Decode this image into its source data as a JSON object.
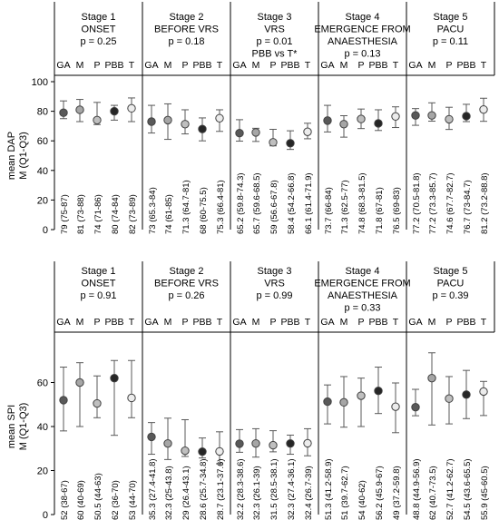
{
  "chart_data": [
    {
      "type": "scatter",
      "ylabel": "mean DAP\nM (Q1-Q3)",
      "ylim": [
        0,
        100
      ],
      "yticks": [
        0,
        20,
        40,
        60,
        80,
        100
      ],
      "grid": false,
      "stages": [
        {
          "title": [
            "Stage 1",
            "ONSET"
          ],
          "pvalue": [
            "p = 0.25"
          ]
        },
        {
          "title": [
            "Stage 2",
            "BEFORE VRS"
          ],
          "pvalue": [
            "p = 0.18"
          ]
        },
        {
          "title": [
            "Stage 3",
            "VRS"
          ],
          "pvalue": [
            "p = 0.01",
            "PBB vs T*"
          ]
        },
        {
          "title": [
            "Stage 4",
            "EMERGENCE FROM",
            "ANAESTHESIA"
          ],
          "pvalue": [
            "p = 0.13"
          ]
        },
        {
          "title": [
            "Stage 5",
            "PACU"
          ],
          "pvalue": [
            "p = 0.11"
          ]
        }
      ],
      "groups": [
        "GA",
        "M",
        "P",
        "PBB",
        "T"
      ],
      "group_colors": {
        "GA": "#595959",
        "M": "#a6a6a6",
        "P": "#bfbfbf",
        "PBB": "#262626",
        "T": "#ececec"
      },
      "points": [
        [
          {
            "median": 79,
            "q1": 75,
            "q3": 87,
            "label": "79 (75-87)"
          },
          {
            "median": 81,
            "q1": 73,
            "q3": 88,
            "label": "81 (73-88)"
          },
          {
            "median": 74,
            "q1": 71,
            "q3": 86,
            "label": "74 (71-86)"
          },
          {
            "median": 80,
            "q1": 74,
            "q3": 84,
            "label": "80 (74-84)"
          },
          {
            "median": 82,
            "q1": 73,
            "q3": 89,
            "label": "82 (73-89)"
          }
        ],
        [
          {
            "median": 73,
            "q1": 65.3,
            "q3": 84,
            "label": "73 (65.3-84)"
          },
          {
            "median": 74,
            "q1": 61,
            "q3": 85,
            "label": "74 (61-85)"
          },
          {
            "median": 71.3,
            "q1": 64.7,
            "q3": 81,
            "label": "71.3 (64.7-81)"
          },
          {
            "median": 68,
            "q1": 60,
            "q3": 75.5,
            "label": "68 (60-75.5)"
          },
          {
            "median": 75.3,
            "q1": 66.4,
            "q3": 81,
            "label": "75.3 (66.4-81)"
          }
        ],
        [
          {
            "median": 65.2,
            "q1": 59.8,
            "q3": 74.3,
            "label": "65.2 (59.8-74.3)"
          },
          {
            "median": 65.7,
            "q1": 59.6,
            "q3": 68.5,
            "label": "65.7 (59.6-68.5)"
          },
          {
            "median": 59,
            "q1": 56.6,
            "q3": 67.8,
            "label": "59 (56.6-67.8)"
          },
          {
            "median": 58.4,
            "q1": 54.2,
            "q3": 66.8,
            "label": "58.4 (54.2-66.8)"
          },
          {
            "median": 66.1,
            "q1": 61.4,
            "q3": 71.9,
            "label": "66.1 (61.4-71.9)"
          }
        ],
        [
          {
            "median": 73.7,
            "q1": 66,
            "q3": 84,
            "label": "73.7 (66-84)"
          },
          {
            "median": 71.3,
            "q1": 62.5,
            "q3": 77,
            "label": "71.3 (62.5-77)"
          },
          {
            "median": 74.8,
            "q1": 68.3,
            "q3": 81.5,
            "label": "74.8 (68.3-81.5)"
          },
          {
            "median": 71.8,
            "q1": 67,
            "q3": 81,
            "label": "71.8 (67-81)"
          },
          {
            "median": 76.5,
            "q1": 69,
            "q3": 83,
            "label": "76.5 (69-83)"
          }
        ],
        [
          {
            "median": 77.2,
            "q1": 70.5,
            "q3": 81.8,
            "label": "77.2 (70.5-81.8)"
          },
          {
            "median": 77.2,
            "q1": 73.3,
            "q3": 85.7,
            "label": "77.2 (73.3-85.7)"
          },
          {
            "median": 74.6,
            "q1": 67.7,
            "q3": 82.7,
            "label": "74.6 (67.7-82.7)"
          },
          {
            "median": 76.7,
            "q1": 73,
            "q3": 84.7,
            "label": "76.7 (73-84.7)"
          },
          {
            "median": 81.2,
            "q1": 73.2,
            "q3": 88.8,
            "label": "81.2 (73.2-88.8)"
          }
        ]
      ]
    },
    {
      "type": "scatter",
      "ylabel": "mean SPI\nM (Q1-Q3)",
      "ylim": [
        0,
        80
      ],
      "yticks": [
        0,
        20,
        40,
        60
      ],
      "grid": false,
      "stages": [
        {
          "title": [
            "Stage 1",
            "ONSET"
          ],
          "pvalue": [
            "p = 0.91"
          ]
        },
        {
          "title": [
            "Stage 2",
            "BEFORE VRS"
          ],
          "pvalue": [
            "p = 0.26"
          ]
        },
        {
          "title": [
            "Stage 3",
            "VRS"
          ],
          "pvalue": [
            "p = 0.99"
          ]
        },
        {
          "title": [
            "Stage 4",
            "EMERGENCE FROM",
            "ANAESTHESIA"
          ],
          "pvalue": [
            "p = 0.33"
          ]
        },
        {
          "title": [
            "Stage 5",
            "PACU"
          ],
          "pvalue": [
            "p = 0.39"
          ]
        }
      ],
      "groups": [
        "GA",
        "M",
        "P",
        "PBB",
        "T"
      ],
      "group_colors": {
        "GA": "#595959",
        "M": "#a6a6a6",
        "P": "#bfbfbf",
        "PBB": "#262626",
        "T": "#ececec"
      },
      "points": [
        [
          {
            "median": 52,
            "q1": 38,
            "q3": 67,
            "label": "52 (38-67)"
          },
          {
            "median": 60,
            "q1": 40,
            "q3": 69,
            "label": "60 (40-69)"
          },
          {
            "median": 50.5,
            "q1": 44,
            "q3": 63,
            "label": "50.5 (44-63)"
          },
          {
            "median": 62,
            "q1": 36,
            "q3": 70,
            "label": "62 (36-70)"
          },
          {
            "median": 53,
            "q1": 44,
            "q3": 70,
            "label": "53 (44-70)"
          }
        ],
        [
          {
            "median": 35.3,
            "q1": 27.4,
            "q3": 41.8,
            "label": "35.3 (27.4-41.8)"
          },
          {
            "median": 32.3,
            "q1": 25,
            "q3": 43.8,
            "label": "32.3 (25-43.8)"
          },
          {
            "median": 29,
            "q1": 26.4,
            "q3": 43.1,
            "label": "29 (26.4-43.1)"
          },
          {
            "median": 28.6,
            "q1": 25.7,
            "q3": 34.8,
            "label": "28.6 (25.7-34.8)"
          },
          {
            "median": 28.7,
            "q1": 23.1,
            "q3": 37.6,
            "label": "28.7 (23.1-37.6)"
          }
        ],
        [
          {
            "median": 32.2,
            "q1": 28.3,
            "q3": 38.6,
            "label": "32.2 (28.3-38.6)"
          },
          {
            "median": 32.3,
            "q1": 26.1,
            "q3": 39,
            "label": "32.3 (26.1-39)"
          },
          {
            "median": 31.5,
            "q1": 28.5,
            "q3": 38.1,
            "label": "31.5 (28.5-38.1)"
          },
          {
            "median": 32.3,
            "q1": 27.4,
            "q3": 36.1,
            "label": "32.3 (27.4-36.1)"
          },
          {
            "median": 32.4,
            "q1": 26.7,
            "q3": 39,
            "label": "32.4 (26.7-39)"
          }
        ],
        [
          {
            "median": 51.3,
            "q1": 41.2,
            "q3": 58.9,
            "label": "51.3 (41.2-58.9)"
          },
          {
            "median": 51,
            "q1": 39.7,
            "q3": 62.7,
            "label": "51 (39.7-62.7)"
          },
          {
            "median": 54,
            "q1": 40,
            "q3": 62,
            "label": "54 (40-62)"
          },
          {
            "median": 56.2,
            "q1": 45.9,
            "q3": 67,
            "label": "56.2 (45.9-67)"
          },
          {
            "median": 49,
            "q1": 37.2,
            "q3": 59.8,
            "label": "49 (37.2-59.8)"
          }
        ],
        [
          {
            "median": 48.8,
            "q1": 44.9,
            "q3": 56.9,
            "label": "48.8 (44.9-56.9)"
          },
          {
            "median": 62,
            "q1": 40.7,
            "q3": 73.5,
            "label": "62 (40.7-73.5)"
          },
          {
            "median": 52.7,
            "q1": 41.2,
            "q3": 62.7,
            "label": "52.7 (41.2-62.7)"
          },
          {
            "median": 54.5,
            "q1": 43.6,
            "q3": 65.5,
            "label": "54.5 (43.6-65.5)"
          },
          {
            "median": 55.9,
            "q1": 45,
            "q3": 60.5,
            "label": "55.9 (45-60.5)"
          }
        ]
      ]
    }
  ]
}
